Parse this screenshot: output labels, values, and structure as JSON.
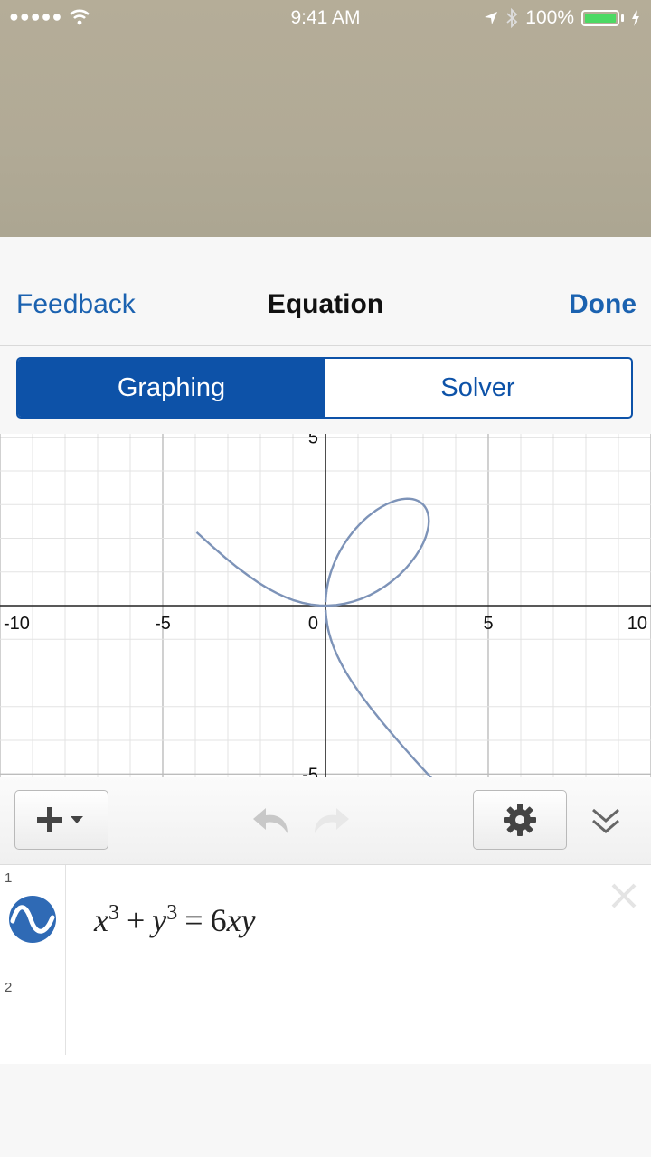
{
  "status_bar": {
    "signal_dots": "●●●●●",
    "time": "9:41 AM",
    "battery_percent": "100%",
    "battery_level": 1.0,
    "battery_color": "#4cd964"
  },
  "nav": {
    "left_label": "Feedback",
    "title": "Equation",
    "right_label": "Done"
  },
  "segmented": {
    "options": [
      "Graphing",
      "Solver"
    ],
    "selected": "Graphing"
  },
  "chart_data": {
    "type": "line",
    "x_ticks": [
      "-10",
      "-5",
      "0",
      "5",
      "10"
    ],
    "y_ticks": [
      "5",
      "-5"
    ],
    "xlim": [
      -10,
      10
    ],
    "ylim": [
      -5.1,
      5.1
    ],
    "grid": true,
    "curve_color": "#7d93b8",
    "series": [
      {
        "equation": "x^3 + y^3 = 6xy"
      }
    ]
  },
  "toolbar": {
    "add_icon": "plus-icon",
    "undo_icon": "undo-icon",
    "redo_icon": "redo-icon",
    "settings_icon": "gear-icon",
    "collapse_icon": "double-chevron-down-icon"
  },
  "expressions": {
    "rows": [
      {
        "num": "1",
        "icon": "sine-wave-icon"
      },
      {
        "num": "2"
      }
    ],
    "expr1": {
      "x": "x",
      "exp1": "3",
      "plus": "+",
      "y": "y",
      "exp2": "3",
      "eq": "=",
      "six": "6",
      "xy": "xy"
    },
    "accent_color": "#2f6ab5"
  }
}
